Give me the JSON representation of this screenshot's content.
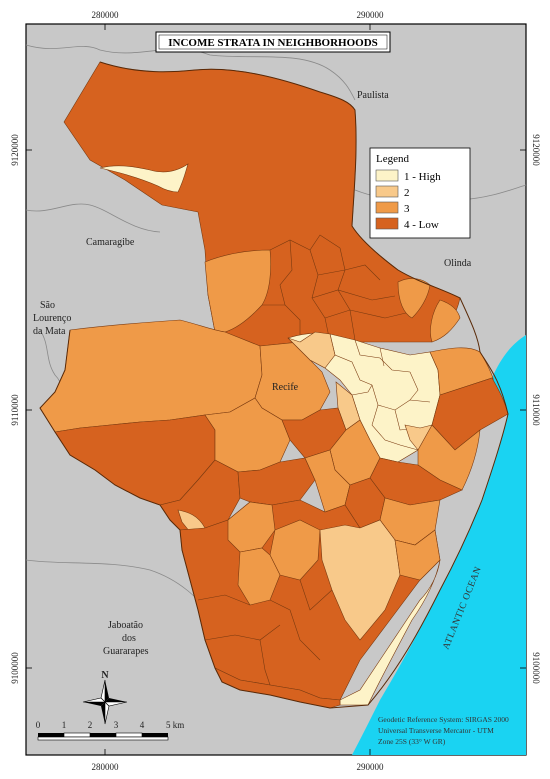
{
  "title": "INCOME STRATA IN NEIGHBORHOODS",
  "colors": {
    "background": "#c8c8c8",
    "ocean": "#1ad3f2",
    "stratum_1": "#fdf3c8",
    "stratum_2": "#f8c98a",
    "stratum_3": "#ef9a48",
    "stratum_4": "#d6621f"
  },
  "coords": {
    "top": [
      "280000",
      "290000"
    ],
    "bottom": [
      "280000",
      "290000"
    ],
    "left": [
      "9120000",
      "9110000",
      "9100000"
    ],
    "right": [
      "9120000",
      "9110000",
      "9100000"
    ]
  },
  "legend": {
    "title": "Legend",
    "items": [
      "1 - High",
      "2",
      "3",
      "4 - Low"
    ]
  },
  "places": {
    "paulista": "Paulista",
    "camaragibe": "Camaragibe",
    "sao_lourenco_1": "São",
    "sao_lourenco_2": "Lourenço",
    "sao_lourenco_3": "da Mata",
    "olinda": "Olinda",
    "recife": "Recife",
    "jaboatao_1": "Jaboatão",
    "jaboatao_2": "dos",
    "jaboatao_3": "Guararapes",
    "ocean": "ATLANTIC OCEAN"
  },
  "north": "N",
  "scale": {
    "labels": [
      "0",
      "1",
      "2",
      "3",
      "4",
      "5 km"
    ]
  },
  "crs": {
    "line1": "Geodetic Reference System: SIRGAS 2000",
    "line2": "Universal Transverse Mercator - UTM",
    "line3": "Zone 25S (33° W GR)"
  }
}
